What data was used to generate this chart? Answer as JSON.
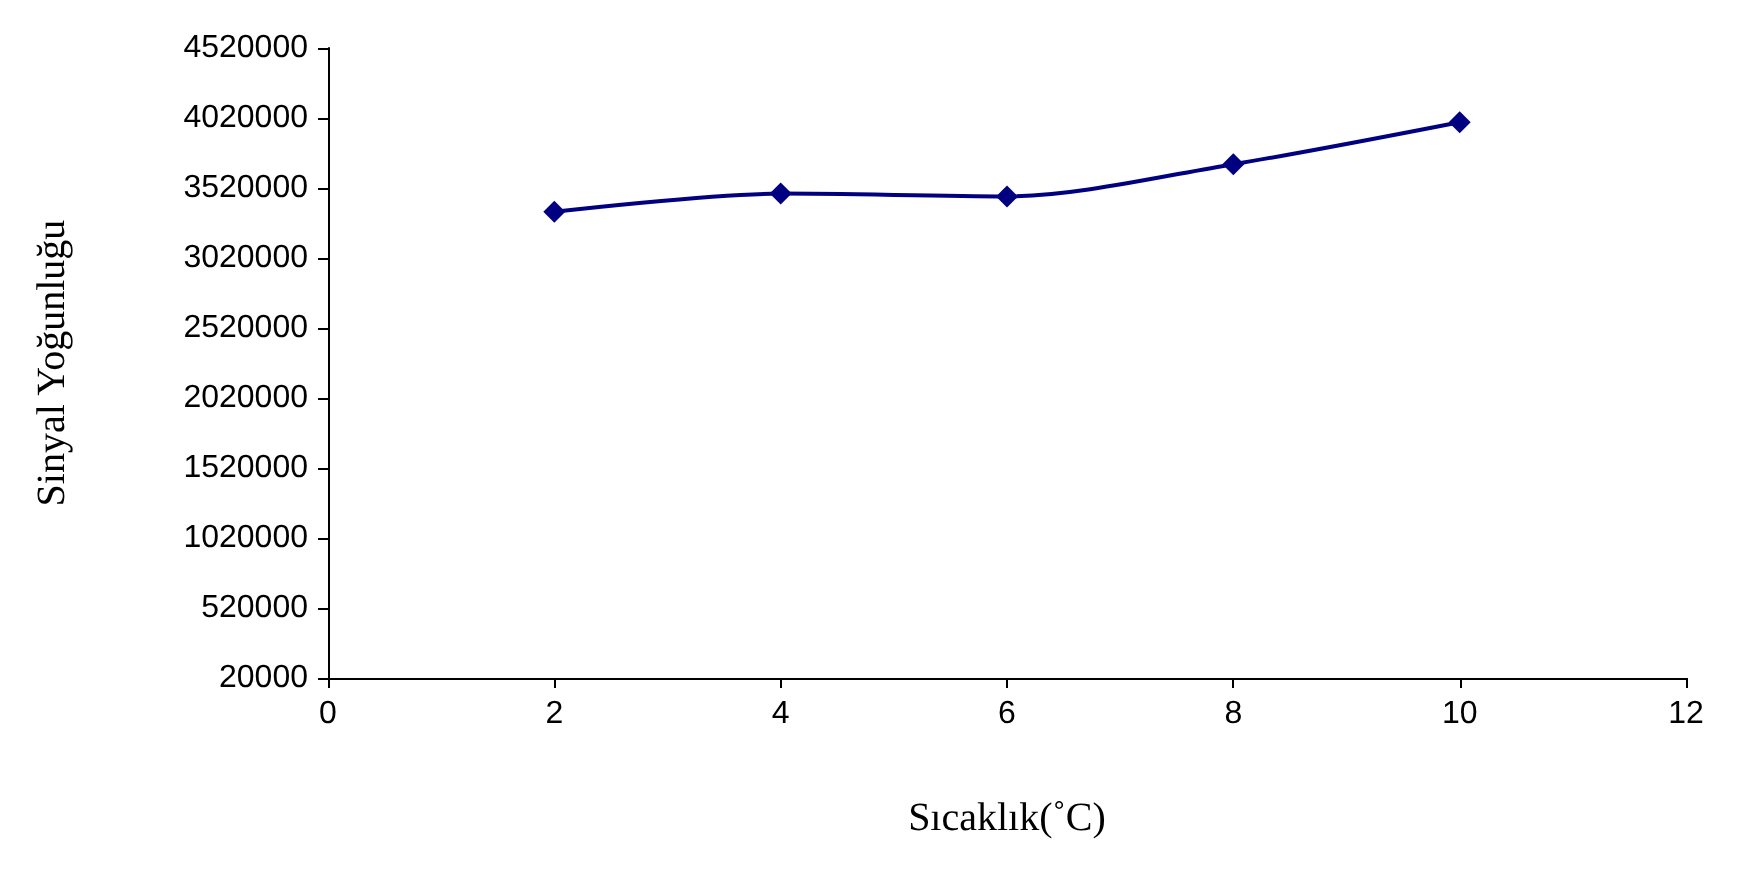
{
  "chart_data": {
    "type": "line",
    "xlabel": "Sıcaklık(˚C)",
    "ylabel": "Sinyal Yoğunluğu",
    "x": [
      2,
      4,
      6,
      8,
      10
    ],
    "series": [
      {
        "color": "#000080",
        "values": [
          3350000,
          3480000,
          3460000,
          3690000,
          3990000
        ]
      }
    ],
    "xlim": [
      0,
      12
    ],
    "xticks": [
      0,
      2,
      4,
      6,
      8,
      10,
      12
    ],
    "ylim": [
      20000,
      4520000
    ],
    "yticks": [
      20000,
      520000,
      1020000,
      1520000,
      2020000,
      2520000,
      3020000,
      3520000,
      4020000,
      4520000
    ],
    "grid": false,
    "marker": "diamond",
    "line_style": "solid"
  }
}
